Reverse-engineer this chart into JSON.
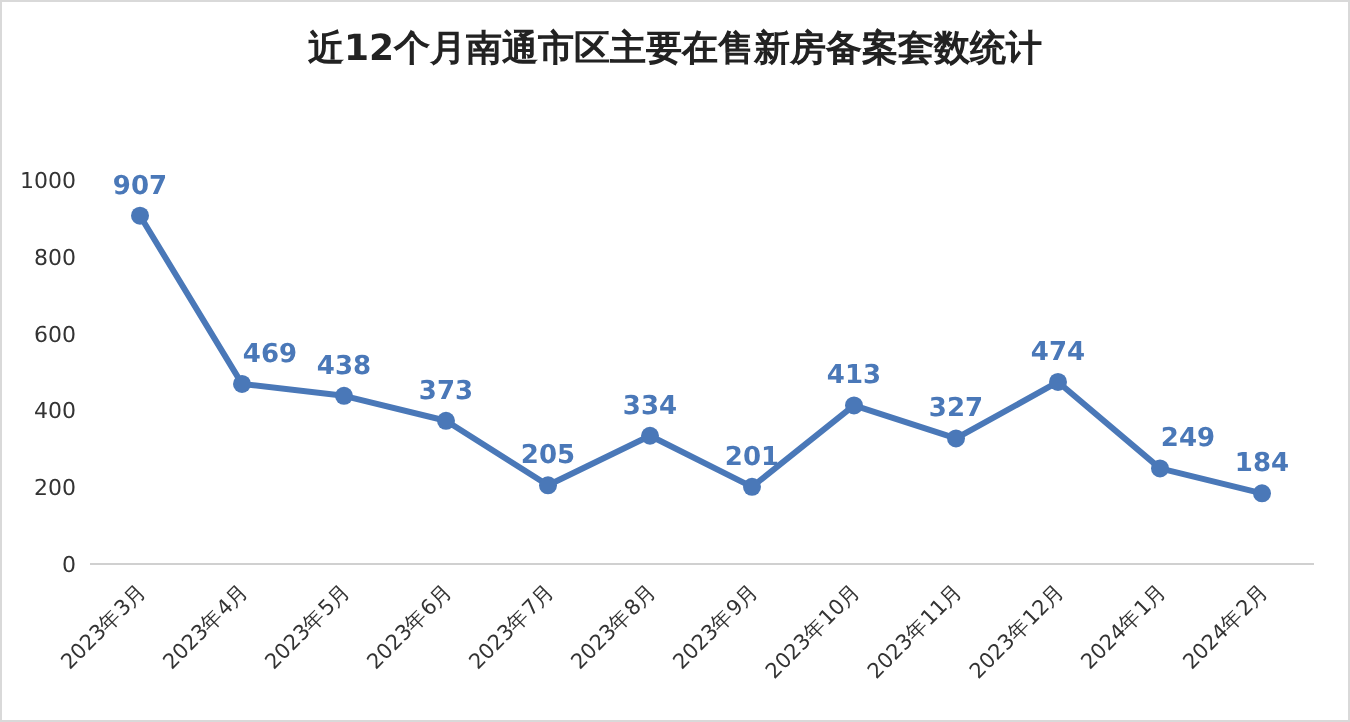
{
  "chart_data": {
    "type": "line",
    "title": "近12个月南通市区主要在售新房备案套数统计",
    "categories": [
      "2023年3月",
      "2023年4月",
      "2023年5月",
      "2023年6月",
      "2023年7月",
      "2023年8月",
      "2023年9月",
      "2023年10月",
      "2023年11月",
      "2023年12月",
      "2024年1月",
      "2024年2月"
    ],
    "values": [
      907,
      469,
      438,
      373,
      205,
      334,
      201,
      413,
      327,
      474,
      249,
      184
    ],
    "color": "#4a78b8",
    "marker": "circle",
    "data_labels": true,
    "ylim": [
      0,
      1000
    ],
    "yticks": [
      0,
      200,
      400,
      600,
      800,
      1000
    ]
  }
}
